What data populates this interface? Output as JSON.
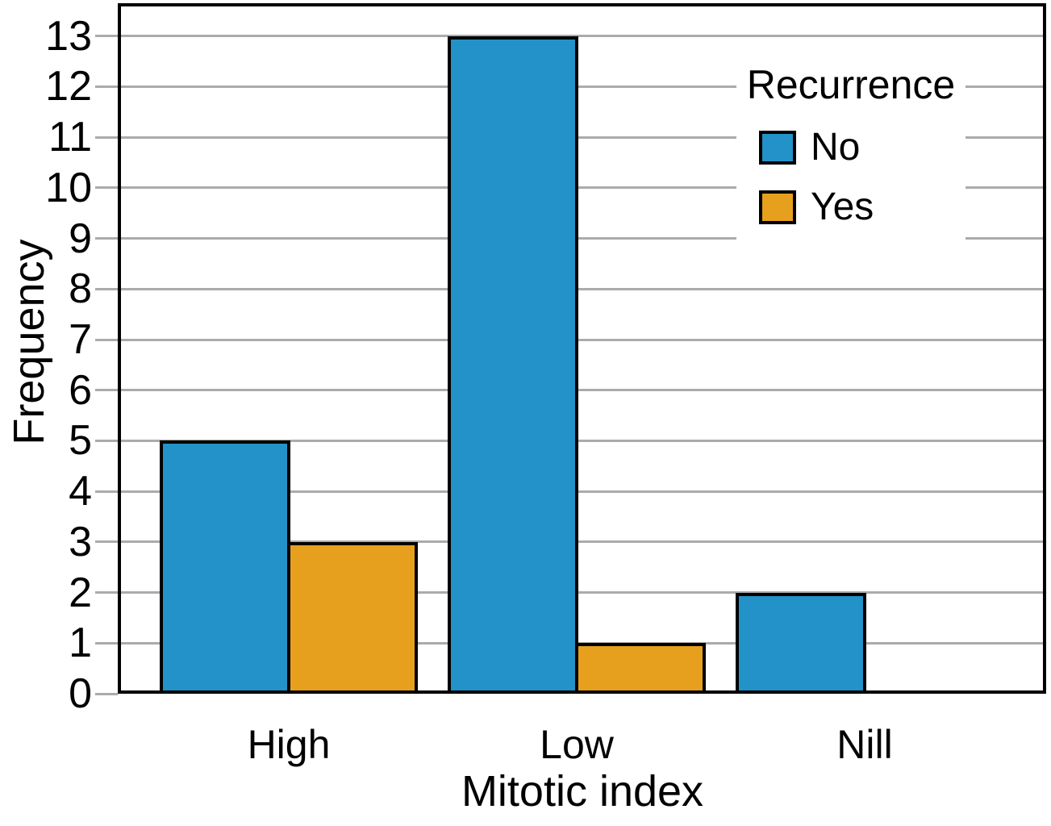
{
  "figure": {
    "background": "#FFFFFF",
    "frame_color": "#000000",
    "text_color": "#000000"
  },
  "chart_data": {
    "type": "bar",
    "title": "",
    "xlabel": "Mitotic index",
    "ylabel": "Frequency",
    "categories": [
      "High",
      "Low",
      "Nill"
    ],
    "series": [
      {
        "name": "No",
        "color": "#2292C8",
        "values": [
          5,
          13,
          2
        ]
      },
      {
        "name": "Yes",
        "color": "#E6A01E",
        "values": [
          3,
          1,
          0
        ]
      }
    ],
    "legend_title": "Recurrence",
    "legend_position": "upper right",
    "ylim": [
      0,
      13.65
    ],
    "yticks": [
      0,
      1,
      2,
      3,
      4,
      5,
      6,
      7,
      8,
      9,
      10,
      11,
      12,
      13
    ],
    "grid": "horizontal",
    "gridline_color": "#ABABAB",
    "bar_outline_color": "#000000"
  }
}
